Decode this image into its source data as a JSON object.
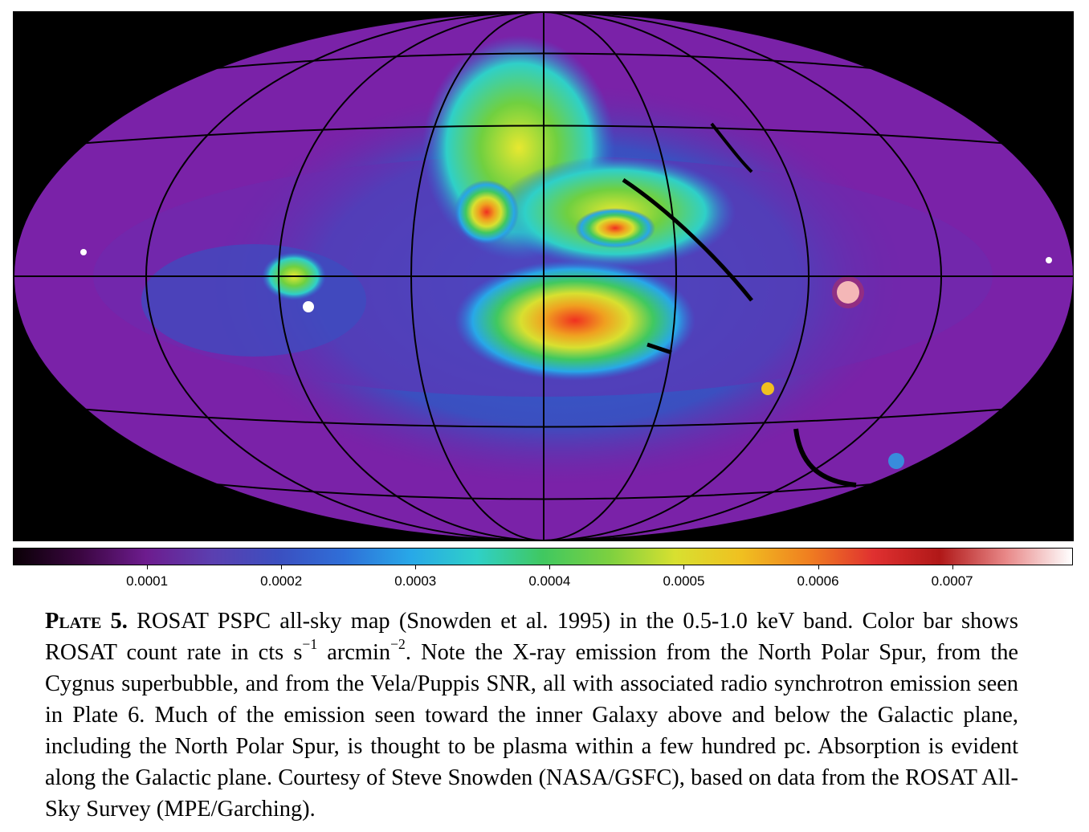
{
  "figure": {
    "description_icon": "rosat-all-sky-map-image"
  },
  "colorbar": {
    "ticks": [
      "0.0001",
      "0.0002",
      "0.0003",
      "0.0004",
      "0.0005",
      "0.0006",
      "0.0007"
    ],
    "tick_values": [
      0.0001,
      0.0002,
      0.0003,
      0.0004,
      0.0005,
      0.0006,
      0.0007
    ],
    "range": [
      0.0,
      0.00079
    ],
    "colors": [
      "#0a0006",
      "#3a0640",
      "#6d1c8e",
      "#5b3fb0",
      "#3b4fc0",
      "#2f6fd8",
      "#28a8e8",
      "#2fd0c8",
      "#40c860",
      "#7cd040",
      "#d8e030",
      "#f0c020",
      "#f08020",
      "#e03030",
      "#b01818",
      "#e88888",
      "#ffffff"
    ]
  },
  "caption": {
    "plate_label": "Plate 5.",
    "part1": " ROSAT PSPC all-sky map (Snowden et al. 1995) in the 0.5-1.0 keV band.  Color bar shows ROSAT count rate in ",
    "unit_cts": "cts s",
    "unit_exp1": "−1",
    "unit_arcmin": " arcmin",
    "unit_exp2": "−2",
    "part2": ". Note the X-ray emission from the North Polar Spur, from the Cygnus superbubble, and from the Vela/Puppis SNR, all with associated radio synchrotron emission seen in Plate 6. Much of the emission seen toward the inner Galaxy above and below the Galactic plane, including the North Polar Spur, is thought to be plasma within a few hundred pc.  Absorption is evident along the Galactic plane.  Courtesy of Steve Snowden (NASA/GSFC), based on data from the ROSAT All-Sky Survey (MPE/Garching)."
  }
}
